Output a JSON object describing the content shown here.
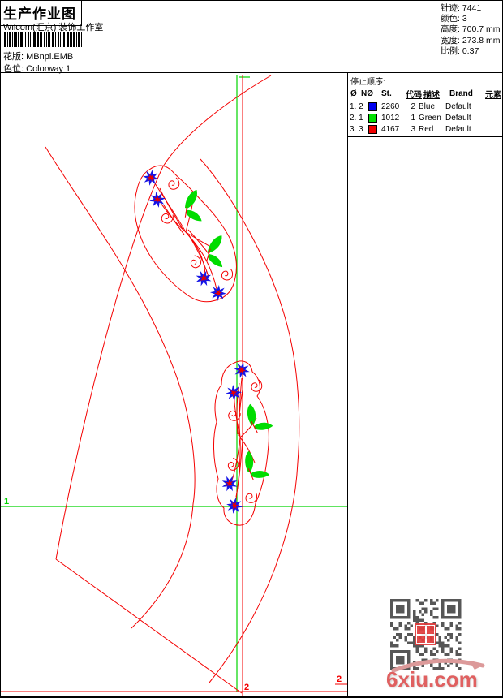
{
  "header": {
    "title": "生产作业图",
    "studio": "Wilcom(汇京) 装饰工作室",
    "pattern_label": "花版:",
    "pattern_value": "MBnpl.EMB",
    "colorway_label": "色位:",
    "colorway_value": "Colorway 1",
    "stats": [
      {
        "label": "针迹:",
        "value": "7441"
      },
      {
        "label": "颜色:",
        "value": "3"
      },
      {
        "label": "高度:",
        "value": "700.7 mm"
      },
      {
        "label": "宽度:",
        "value": "273.8 mm"
      },
      {
        "label": "比例:",
        "value": "0.37"
      }
    ]
  },
  "stop_sequence": {
    "title": "停止顺序:",
    "columns": [
      "Ø",
      "NØ",
      "St.",
      "代码",
      "描述",
      "Brand",
      "元素"
    ],
    "rows": [
      {
        "seq": "1. 2",
        "swatch": "#0000f0",
        "st": "2260",
        "code": "2",
        "desc": "Blue",
        "brand": "Default"
      },
      {
        "seq": "2. 1",
        "swatch": "#00e000",
        "st": "1012",
        "code": "1",
        "desc": "Green",
        "brand": "Default"
      },
      {
        "seq": "3. 3",
        "swatch": "#f00000",
        "st": "4167",
        "code": "3",
        "desc": "Red",
        "brand": "Default"
      }
    ]
  },
  "canvas_markers": {
    "hoop_left": "1",
    "origin_bottom": "2",
    "origin_right": "2"
  },
  "colors": {
    "line_red": "#f40000",
    "line_green": "#00d400",
    "flower_blue": "#1414e6",
    "flower_center_red": "#e80000",
    "leaf_green": "#00dc00"
  },
  "footer": {
    "watermark": "6xiu.com"
  }
}
